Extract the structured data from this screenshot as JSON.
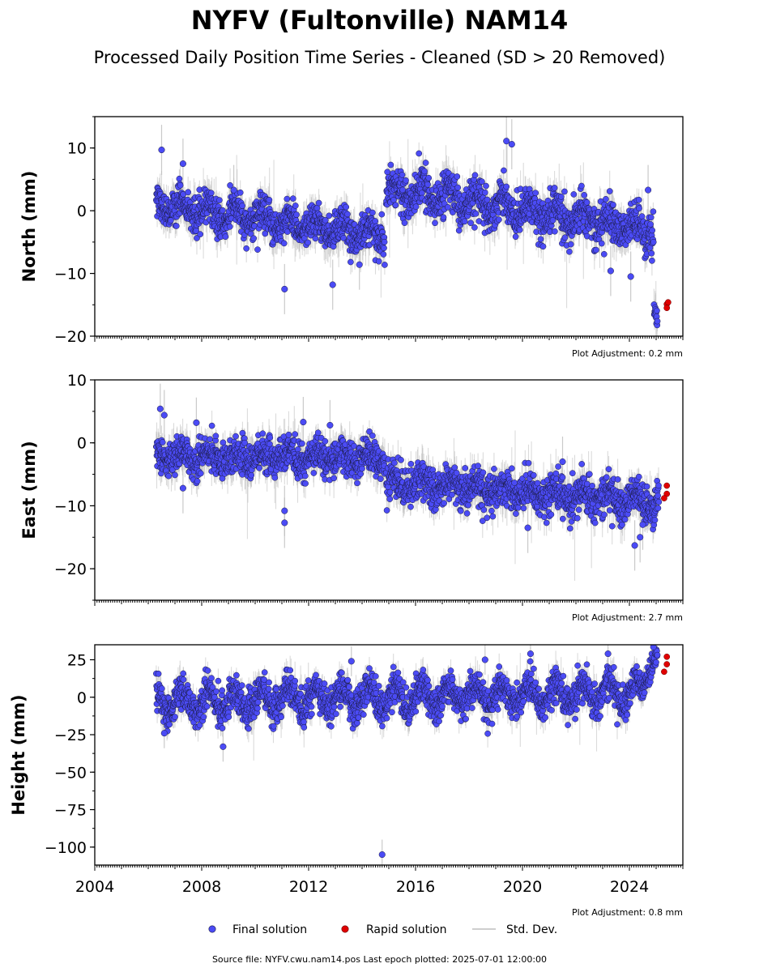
{
  "figure": {
    "title": "NYFV (Fultonville) NAM14",
    "subtitle": "Processed Daily Position Time Series - Cleaned (SD > 20 Removed)",
    "legend": {
      "final": "Final solution",
      "rapid": "Rapid solution",
      "stddev": "Std. Dev."
    },
    "footer": "Source file: NYFV.cwu.nam14.pos  Last epoch plotted: 2025-07-01 12:00:00"
  },
  "colors": {
    "final": "#4b4bf5",
    "final_edge": "#1a1a40",
    "rapid": "#e00000",
    "stddev": "#bdbdbd"
  },
  "chart_data": [
    {
      "type": "scatter",
      "ylabel": "North (mm)",
      "adjustment": "Plot Adjustment: 0.2 mm",
      "xlim": [
        2004,
        2026
      ],
      "ylim": [
        -20,
        15
      ],
      "yticks": [
        10,
        0,
        -10,
        -20
      ],
      "ytick_labels": [
        "10",
        "0",
        "−10",
        "−20"
      ],
      "grid": false,
      "segments": [
        {
          "x0": 2006.3,
          "x1": 2014.85,
          "y0": 1.0,
          "y1": -4.0,
          "season_amp": 1.2,
          "noise": 1.4
        },
        {
          "x0": 2014.9,
          "x1": 2024.9,
          "y0": 3.5,
          "y1": -3.2,
          "season_amp": 1.4,
          "noise": 1.6
        },
        {
          "x0": 2024.92,
          "x1": 2025.05,
          "y0": -16.0,
          "y1": -17.5,
          "season_amp": 0.0,
          "noise": 0.8
        }
      ],
      "outliers": [
        [
          2006.5,
          9.7
        ],
        [
          2007.3,
          7.5
        ],
        [
          2011.1,
          -12.5
        ],
        [
          2012.9,
          -11.8
        ],
        [
          2013.9,
          -8.6
        ],
        [
          2019.4,
          11.1
        ],
        [
          2019.6,
          10.6
        ],
        [
          2024.05,
          -10.5
        ],
        [
          2023.3,
          -9.6
        ],
        [
          2024.7,
          3.3
        ],
        [
          2009.2,
          3.3
        ]
      ],
      "rapid": [
        [
          2025.4,
          -14.9
        ],
        [
          2025.45,
          -14.6
        ],
        [
          2025.4,
          -15.5
        ]
      ]
    },
    {
      "type": "scatter",
      "ylabel": "East (mm)",
      "adjustment": "Plot Adjustment: 2.7 mm",
      "xlim": [
        2004,
        2026
      ],
      "ylim": [
        -25,
        10
      ],
      "yticks": [
        10,
        0,
        -10,
        -20
      ],
      "ytick_labels": [
        "10",
        "0",
        "−10",
        "−20"
      ],
      "grid": false,
      "segments": [
        {
          "x0": 2006.3,
          "x1": 2014.85,
          "y0": -2.0,
          "y1": -2.5,
          "season_amp": 0.8,
          "noise": 1.3
        },
        {
          "x0": 2014.9,
          "x1": 2025.1,
          "y0": -6.2,
          "y1": -9.5,
          "season_amp": 1.0,
          "noise": 1.5
        }
      ],
      "outliers": [
        [
          2006.45,
          5.4
        ],
        [
          2006.6,
          4.4
        ],
        [
          2007.8,
          3.2
        ],
        [
          2011.8,
          3.3
        ],
        [
          2012.8,
          2.8
        ],
        [
          2011.1,
          -10.8
        ],
        [
          2011.1,
          -12.7
        ],
        [
          2007.3,
          -7.2
        ],
        [
          2024.2,
          -16.3
        ],
        [
          2024.4,
          -15.0
        ],
        [
          2024.5,
          -13.0
        ],
        [
          2021.5,
          -3.0
        ],
        [
          2020.2,
          -13.5
        ]
      ],
      "rapid": [
        [
          2025.4,
          -6.8
        ],
        [
          2025.4,
          -8.1
        ],
        [
          2025.3,
          -8.8
        ]
      ]
    },
    {
      "type": "scatter",
      "ylabel": "Height (mm)",
      "adjustment": "Plot Adjustment: 0.8 mm",
      "xlim": [
        2004,
        2026
      ],
      "ylim": [
        -112,
        35
      ],
      "yticks": [
        25,
        0,
        -25,
        -50,
        -75,
        -100
      ],
      "ytick_labels": [
        "25",
        "0",
        "−25",
        "−50",
        "−75",
        "−100"
      ],
      "xticks": [
        2004,
        2008,
        2012,
        2016,
        2020,
        2024
      ],
      "xtick_labels": [
        "2004",
        "2008",
        "2012",
        "2016",
        "2020",
        "2024"
      ],
      "grid": false,
      "segments": [
        {
          "x0": 2006.3,
          "x1": 2024.5,
          "y0": -3.0,
          "y1": 3.0,
          "season_amp": 7.5,
          "noise": 5.5
        },
        {
          "x0": 2024.5,
          "x1": 2025.05,
          "y0": 5.0,
          "y1": 30.0,
          "season_amp": 0.0,
          "noise": 4.0
        }
      ],
      "outliers": [
        [
          2014.75,
          -105.0
        ],
        [
          2006.6,
          -24.0
        ],
        [
          2008.8,
          -33.0
        ],
        [
          2013.6,
          24.0
        ],
        [
          2018.6,
          25.0
        ],
        [
          2020.3,
          29.0
        ],
        [
          2023.2,
          29.0
        ],
        [
          2024.9,
          33.5
        ]
      ],
      "rapid": [
        [
          2025.4,
          27.0
        ],
        [
          2025.4,
          22.0
        ],
        [
          2025.3,
          17.0
        ]
      ]
    }
  ]
}
